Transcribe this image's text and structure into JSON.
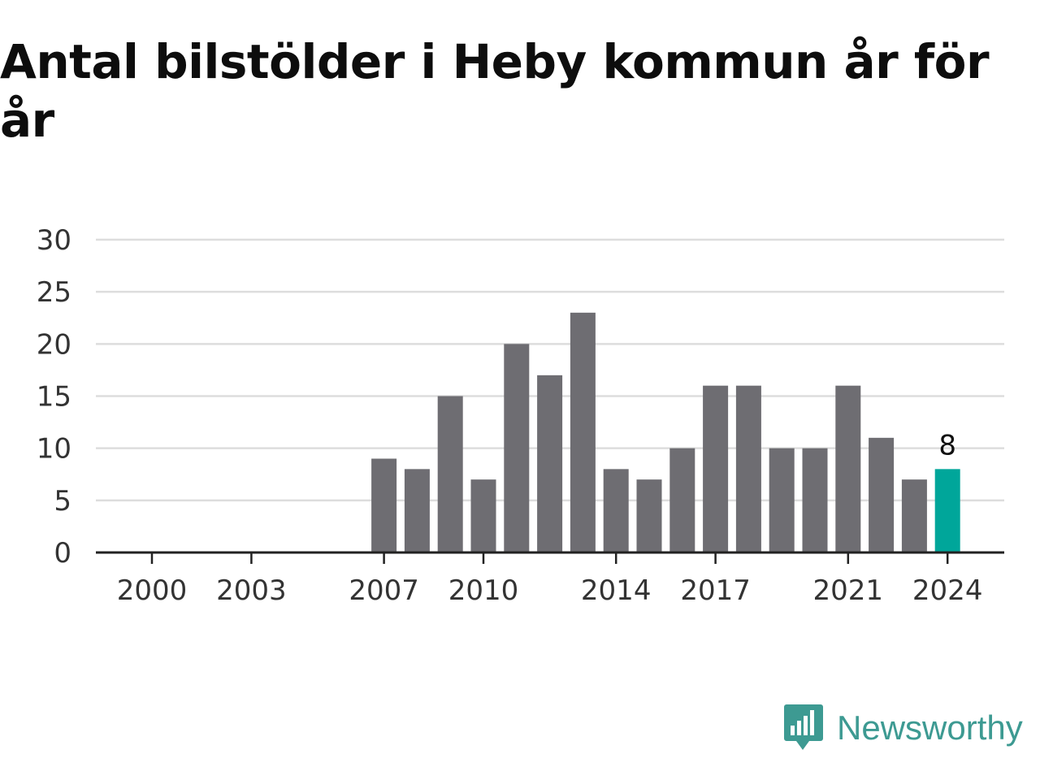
{
  "chart_data": {
    "type": "bar",
    "title": "Antal bilstölder i Heby kommun år för år",
    "xlabel": "",
    "ylabel": "",
    "categories": [
      "2000",
      "2001",
      "2002",
      "2003",
      "2004",
      "2005",
      "2006",
      "2007",
      "2008",
      "2009",
      "2010",
      "2011",
      "2012",
      "2013",
      "2014",
      "2015",
      "2016",
      "2017",
      "2018",
      "2019",
      "2020",
      "2021",
      "2022",
      "2023",
      "2024"
    ],
    "values": [
      0,
      0,
      0,
      0,
      0,
      0,
      0,
      9,
      8,
      15,
      7,
      20,
      17,
      23,
      8,
      7,
      10,
      16,
      16,
      10,
      10,
      16,
      11,
      7,
      8
    ],
    "highlight_category": "2024",
    "highlight_label": "8",
    "ylim": [
      0,
      30
    ],
    "yticks": [
      "0",
      "5",
      "10",
      "15",
      "20",
      "25",
      "30"
    ],
    "xticks": [
      "2000",
      "2003",
      "2007",
      "2010",
      "2014",
      "2017",
      "2021",
      "2024"
    ],
    "grid": true,
    "legend": "none",
    "colors": {
      "bar": "#6e6d72",
      "highlight": "#00a69a",
      "grid": "#dddddd",
      "axis": "#222222"
    }
  },
  "brand": {
    "name": "Newsworthy",
    "icon": "newsworthy-logo-icon",
    "color": "#3d9a92"
  }
}
